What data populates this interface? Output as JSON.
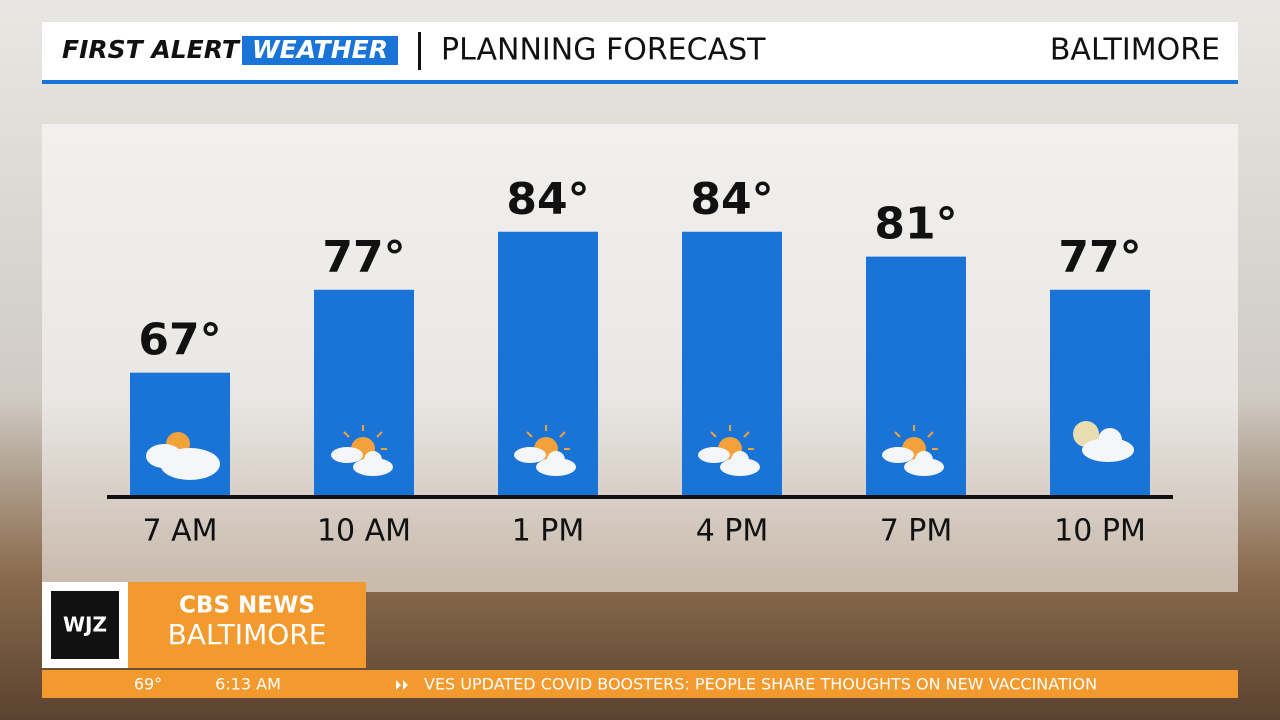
{
  "header": {
    "brand_first": "FIRST ALERT",
    "brand_second": "WEATHER",
    "title": "PLANNING FORECAST",
    "location": "BALTIMORE"
  },
  "chart_data": {
    "type": "bar",
    "categories": [
      "7 AM",
      "10 AM",
      "1 PM",
      "4 PM",
      "7 PM",
      "10 PM"
    ],
    "values": [
      67,
      77,
      84,
      84,
      81,
      77
    ],
    "value_labels": [
      "67°",
      "77°",
      "84°",
      "84°",
      "81°",
      "77°"
    ],
    "color": "#1a73d6",
    "ylim": [
      52,
      97
    ]
  },
  "branding": {
    "station": "WJZ",
    "network": "CBS NEWS",
    "city": "BALTIMORE"
  },
  "ticker": {
    "temperature": "69°",
    "time": "6:13 AM",
    "headline": "VES UPDATED COVID BOOSTERS: PEOPLE SHARE THOUGHTS ON NEW VACCINATION"
  }
}
